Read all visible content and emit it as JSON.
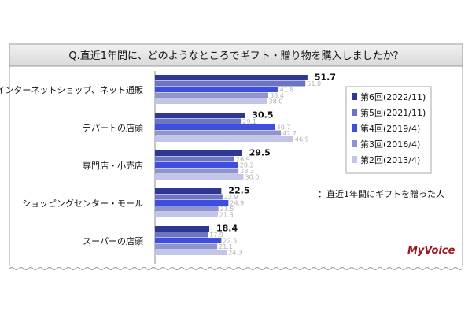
{
  "chart_data": {
    "type": "bar",
    "orientation": "horizontal",
    "title": "Q.直近1年間に、どのようなところでギフト・贈り物を購入しましたか？",
    "categories": [
      "インターネットショップ、ネット通販",
      "デパートの店頭",
      "専門店・小売店",
      "ショッピングセンター・モール",
      "スーパーの店頭"
    ],
    "series": [
      {
        "name": "第6回(2022/11)",
        "color": "#2e3794",
        "values": [
          51.7,
          30.5,
          29.5,
          22.5,
          18.4
        ]
      },
      {
        "name": "第5回(2021/11)",
        "color": "#6d74c2",
        "values": [
          51.0,
          29.1,
          26.9,
          22.9,
          17.9
        ]
      },
      {
        "name": "第4回(2019/4)",
        "color": "#3d4ee0",
        "values": [
          41.8,
          40.7,
          28.2,
          24.9,
          22.5
        ]
      },
      {
        "name": "第3回(2016/4)",
        "color": "#8f94cf",
        "values": [
          38.4,
          42.7,
          28.3,
          21.5,
          21.1
        ]
      },
      {
        "name": "第2回(2013/4)",
        "color": "#c2c4e8",
        "values": [
          38.0,
          46.9,
          30.0,
          21.3,
          24.3
        ]
      }
    ],
    "xlim": [
      0,
      100
    ],
    "grid": false,
    "legend_position": "right",
    "note": "：直近1年間にギフトを贈った人",
    "logo": "MyVoice"
  }
}
